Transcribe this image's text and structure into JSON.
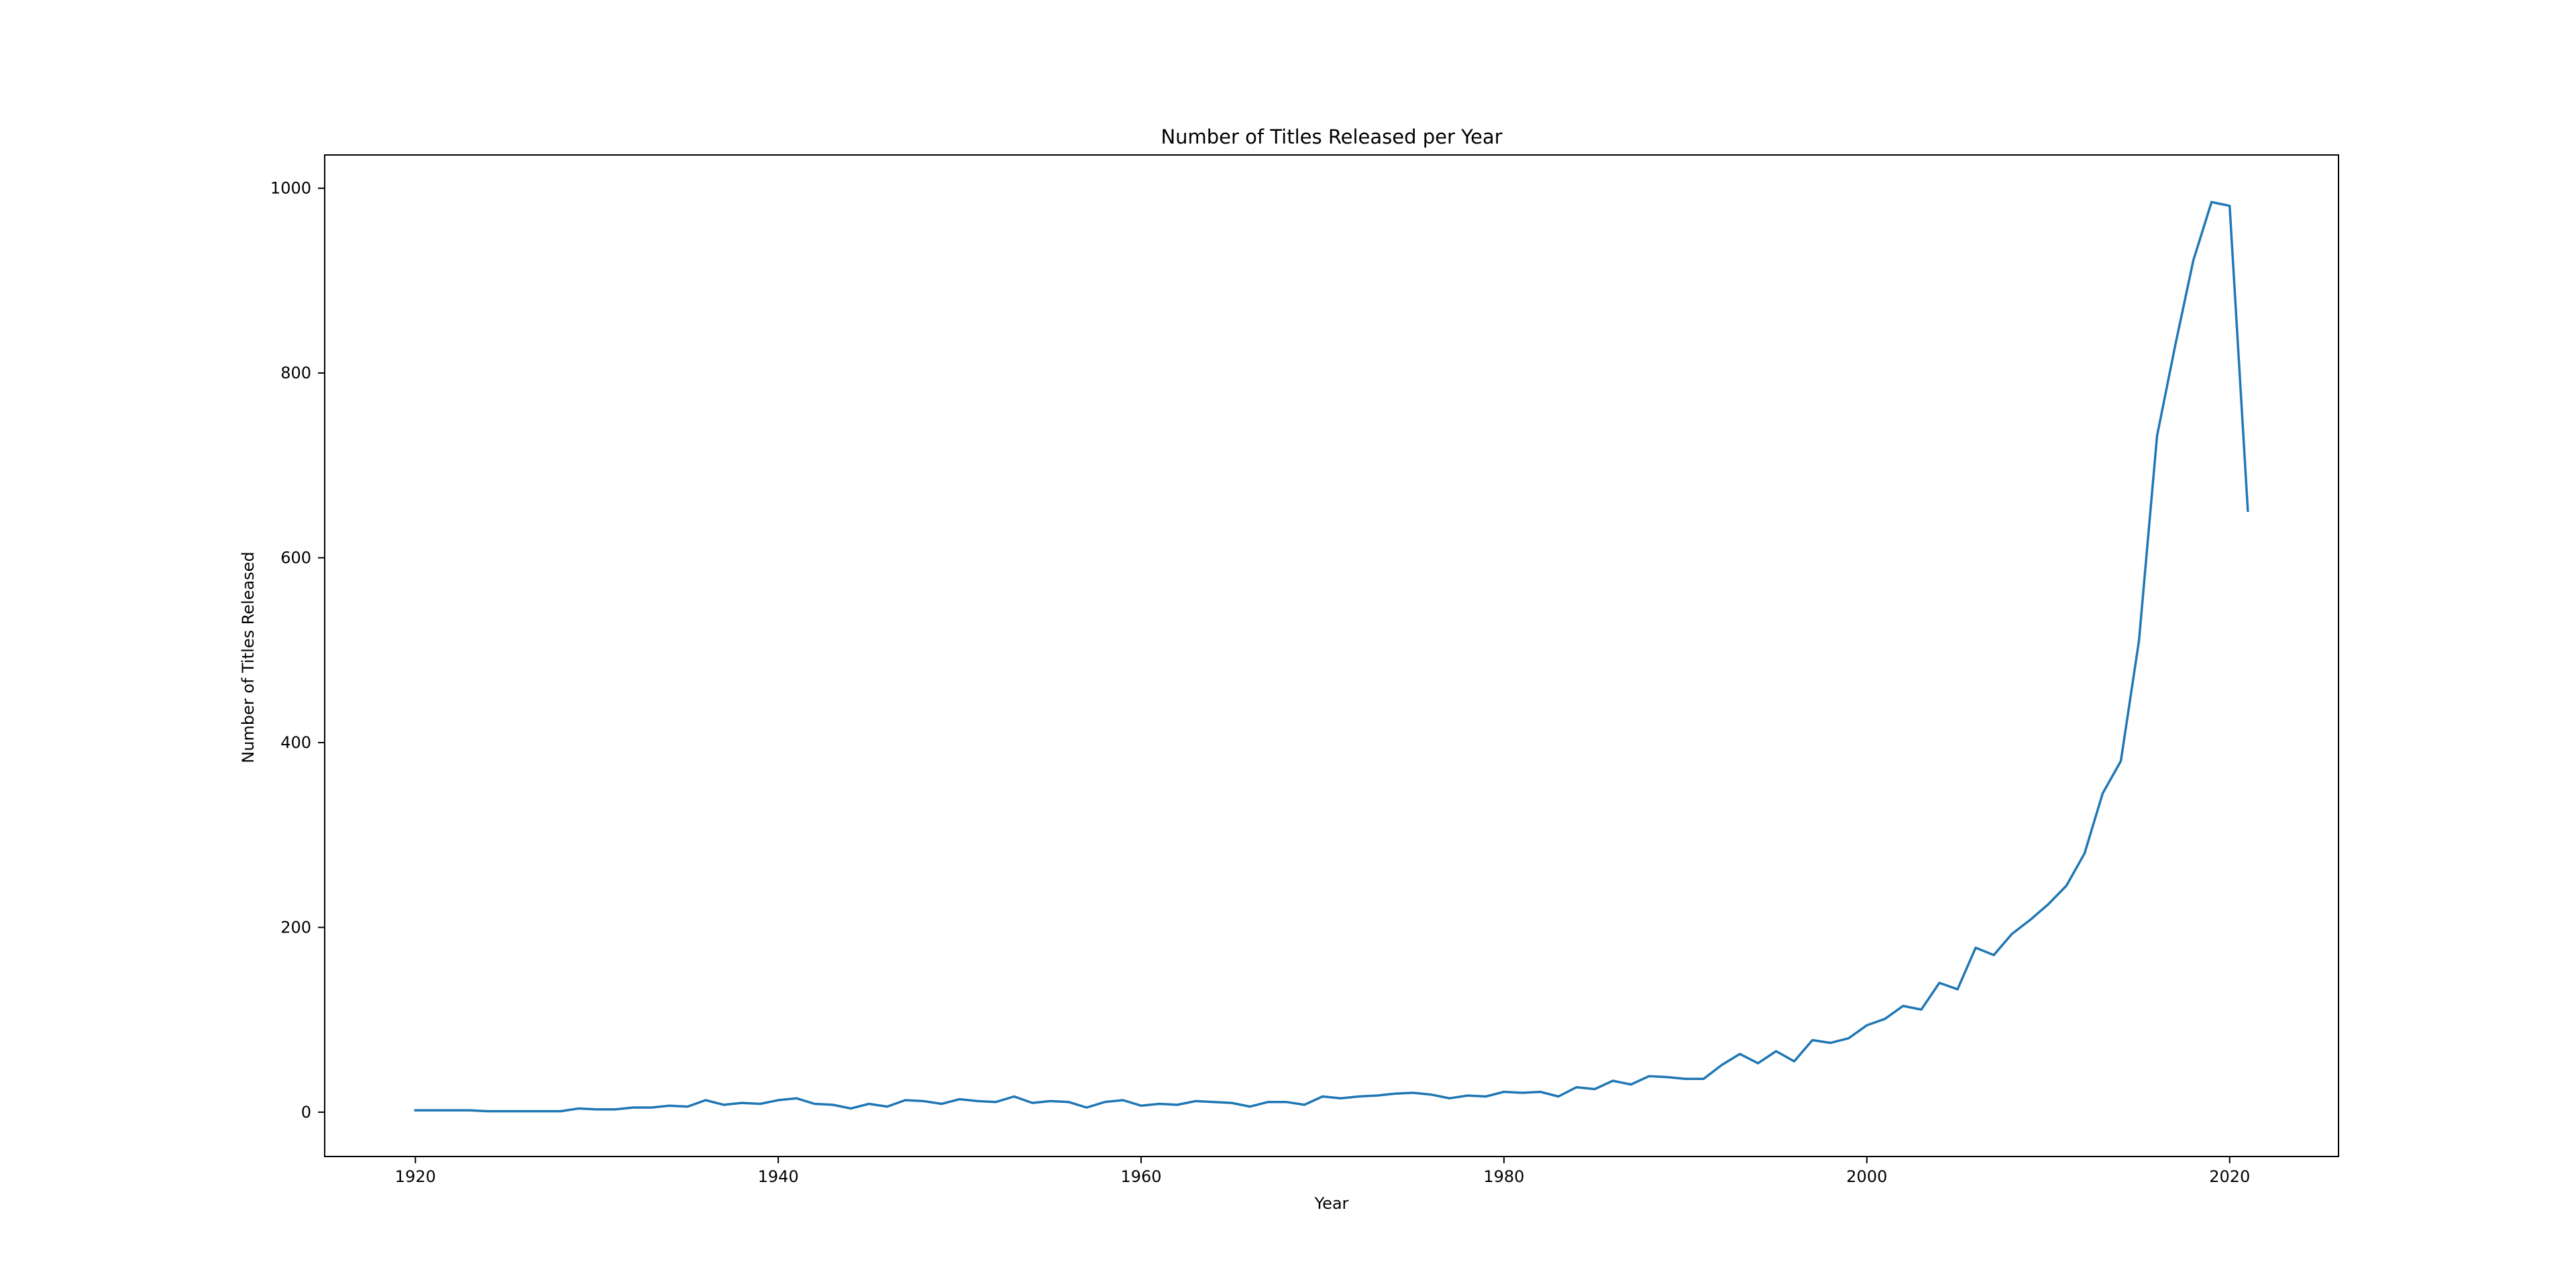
{
  "chart_data": {
    "type": "line",
    "title": "Number of Titles Released per Year",
    "xlabel": "Year",
    "ylabel": "Number of Titles Released",
    "xlim": [
      1915,
      2026
    ],
    "ylim": [
      -48,
      1036
    ],
    "xticks": [
      1920,
      1940,
      1960,
      1980,
      2000,
      2020
    ],
    "yticks": [
      0,
      200,
      400,
      600,
      800,
      1000
    ],
    "grid": false,
    "legend": "none",
    "series": [
      {
        "color": "#1f77b4",
        "x": [
          1920,
          1921,
          1922,
          1923,
          1924,
          1925,
          1926,
          1927,
          1928,
          1929,
          1930,
          1931,
          1932,
          1933,
          1934,
          1935,
          1936,
          1937,
          1938,
          1939,
          1940,
          1941,
          1942,
          1943,
          1944,
          1945,
          1946,
          1947,
          1948,
          1949,
          1950,
          1951,
          1952,
          1953,
          1954,
          1955,
          1956,
          1957,
          1958,
          1959,
          1960,
          1961,
          1962,
          1963,
          1964,
          1965,
          1966,
          1967,
          1968,
          1969,
          1970,
          1971,
          1972,
          1973,
          1974,
          1975,
          1976,
          1977,
          1978,
          1979,
          1980,
          1981,
          1982,
          1983,
          1984,
          1985,
          1986,
          1987,
          1988,
          1989,
          1990,
          1991,
          1992,
          1993,
          1994,
          1995,
          1996,
          1997,
          1998,
          1999,
          2000,
          2001,
          2002,
          2003,
          2004,
          2005,
          2006,
          2007,
          2008,
          2009,
          2010,
          2011,
          2012,
          2013,
          2014,
          2015,
          2016,
          2017,
          2018,
          2019,
          2020,
          2021
        ],
        "y": [
          2,
          2,
          2,
          2,
          1,
          1,
          1,
          1,
          1,
          4,
          3,
          3,
          5,
          5,
          7,
          6,
          13,
          8,
          10,
          9,
          13,
          15,
          9,
          8,
          4,
          9,
          6,
          13,
          12,
          9,
          14,
          12,
          11,
          17,
          10,
          12,
          11,
          5,
          11,
          13,
          7,
          9,
          8,
          12,
          11,
          10,
          6,
          11,
          11,
          8,
          17,
          15,
          17,
          18,
          20,
          21,
          19,
          15,
          18,
          17,
          22,
          21,
          22,
          17,
          27,
          25,
          34,
          30,
          39,
          38,
          36,
          36,
          51,
          63,
          53,
          66,
          55,
          78,
          75,
          80,
          94,
          101,
          115,
          111,
          140,
          133,
          178,
          170,
          193,
          208,
          225,
          245,
          280,
          345,
          380,
          510,
          732,
          830,
          922,
          985,
          981,
          651
        ]
      }
    ]
  }
}
